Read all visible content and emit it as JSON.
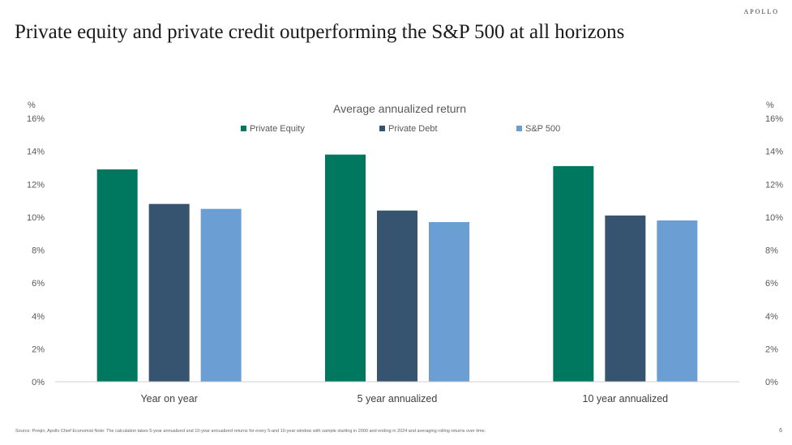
{
  "brand": "APOLLO",
  "title": "Private equity and private credit outperforming the S&P 500 at all horizons",
  "source": "Source: Preqin, Apollo Chief Economist Note: The calculation takes 5-year annualized and 10-year annualized returns for every 5-and 10-year window with sample starting in 2000 and ending in 2024 and averaging rolling returns over time.",
  "page_number": "6",
  "chart_data": {
    "type": "bar",
    "title": "Average annualized return",
    "ylabel_left": "%",
    "ylabel_right": "%",
    "categories": [
      "Year on year",
      "5 year annualized",
      "10 year annualized"
    ],
    "series": [
      {
        "name": "Private Equity",
        "color": "#00785F",
        "values": [
          12.9,
          13.8,
          13.1
        ]
      },
      {
        "name": "Private Debt",
        "color": "#36536F",
        "values": [
          10.8,
          10.4,
          10.1
        ]
      },
      {
        "name": "S&P 500",
        "color": "#6B9FD3",
        "values": [
          10.5,
          9.7,
          9.8
        ]
      }
    ],
    "ylim": [
      0,
      16
    ],
    "yticks": [
      "0%",
      "2%",
      "4%",
      "6%",
      "8%",
      "10%",
      "12%",
      "14%",
      "16%"
    ],
    "legend_position": "top-center",
    "grid": false
  }
}
